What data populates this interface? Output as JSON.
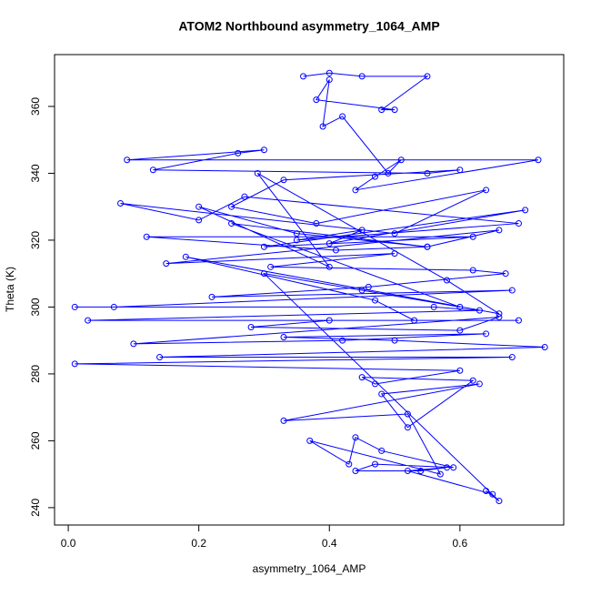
{
  "chart_data": {
    "type": "line",
    "title": "ATOM2 Northbound asymmetry_1064_AMP",
    "x_label": "asymmetry_1064_AMP",
    "y_label": "Theta (K)",
    "x": [
      0.36,
      0.4,
      0.45,
      0.55,
      0.48,
      0.5,
      0.38,
      0.4,
      0.39,
      0.42,
      0.49,
      0.51,
      0.47,
      0.44,
      0.72,
      0.09,
      0.3,
      0.26,
      0.13,
      0.55,
      0.6,
      0.33,
      0.25,
      0.38,
      0.64,
      0.5,
      0.08,
      0.2,
      0.27,
      0.69,
      0.35,
      0.45,
      0.4,
      0.7,
      0.3,
      0.62,
      0.12,
      0.41,
      0.55,
      0.66,
      0.15,
      0.5,
      0.31,
      0.62,
      0.67,
      0.46,
      0.22,
      0.68,
      0.07,
      0.01,
      0.56,
      0.63,
      0.03,
      0.69,
      0.4,
      0.28,
      0.6,
      0.66,
      0.1,
      0.42,
      0.64,
      0.33,
      0.5,
      0.73,
      0.14,
      0.68,
      0.01,
      0.6,
      0.47,
      0.45,
      0.62,
      0.52,
      0.48,
      0.63,
      0.33,
      0.52,
      0.57,
      0.37,
      0.43,
      0.44,
      0.48,
      0.59,
      0.47,
      0.44,
      0.54,
      0.58,
      0.52,
      0.65,
      0.64,
      0.66,
      0.3,
      0.45,
      0.6,
      0.25,
      0.55,
      0.35,
      0.2,
      0.4,
      0.29,
      0.58,
      0.66,
      0.18,
      0.47,
      0.53
    ],
    "values": [
      369,
      370,
      369,
      369,
      359,
      359,
      362,
      368,
      354,
      357,
      340,
      344,
      339,
      335,
      344,
      344,
      347,
      346,
      341,
      340,
      341,
      338,
      330,
      325,
      335,
      322,
      331,
      326,
      333,
      325,
      320,
      323,
      319,
      329,
      318,
      321,
      321,
      317,
      318,
      323,
      313,
      316,
      312,
      311,
      310,
      306,
      303,
      305,
      300,
      300,
      300,
      299,
      296,
      296,
      296,
      294,
      293,
      297,
      289,
      290,
      292,
      291,
      290,
      288,
      285,
      285,
      283,
      281,
      277,
      279,
      278,
      264,
      274,
      277,
      266,
      268,
      250,
      260,
      253,
      261,
      257,
      252,
      253,
      251,
      251,
      252,
      251,
      244,
      245,
      242,
      310,
      305,
      300,
      325,
      318,
      322,
      330,
      312,
      340,
      308,
      298,
      315,
      302,
      296
    ],
    "color": "#0000ff",
    "xlim": [
      -0.021,
      0.759
    ],
    "ylim": [
      234.8,
      375.5
    ],
    "xticks": [
      {
        "value": 0,
        "label": "0.0"
      },
      0.2,
      0.4,
      0.6
    ],
    "yticks": [
      240,
      260,
      280,
      300,
      320,
      340,
      360
    ]
  }
}
